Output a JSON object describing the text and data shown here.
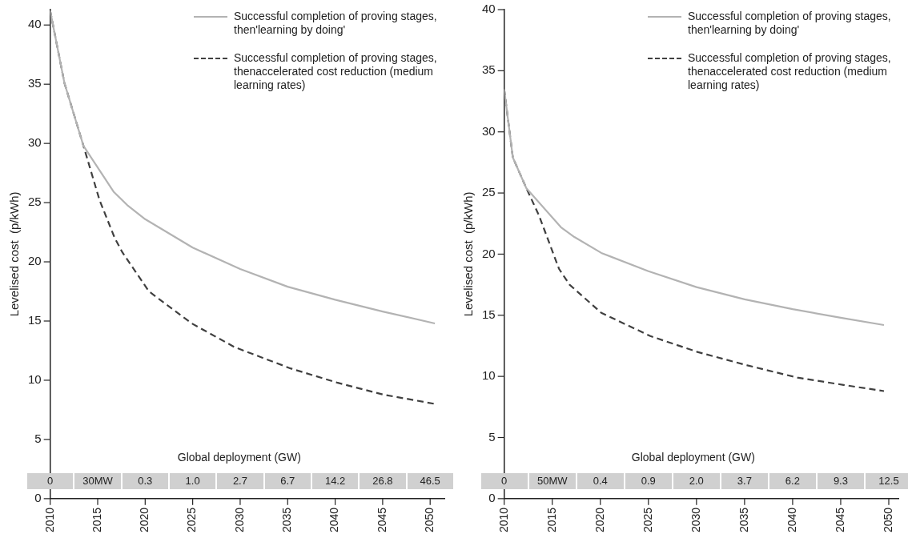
{
  "chart_data": [
    {
      "type": "line",
      "ylabel": "Levelised cost  (p/kWh)",
      "xlim": [
        2010,
        2051.5
      ],
      "xticks": [
        2010,
        2015,
        2020,
        2025,
        2030,
        2035,
        2040,
        2045,
        2050
      ],
      "ylim": [
        0,
        41.3
      ],
      "yticks": [
        0,
        5,
        10,
        15,
        20,
        25,
        30,
        35,
        40
      ],
      "grid": false,
      "legend": "top right",
      "marker": "none",
      "annotations": [
        "Global deployment (GW)",
        "0",
        "30MW",
        "0.3",
        "1.0",
        "2.7",
        "6.7",
        "14.2",
        "26.8",
        "46.5"
      ],
      "series": [
        {
          "name": "Successful completion of proving stages, then'learning by doing'",
          "color": "#b3b3b3",
          "line_style": "solid",
          "x": [
            2010,
            2011.5,
            2013.5,
            2016.7,
            2018.1,
            2020,
            2025,
            2030,
            2035,
            2040,
            2045,
            2050.5
          ],
          "values": [
            41.2,
            35.1,
            29.8,
            25.9,
            24.8,
            23.6,
            21.2,
            19.4,
            17.9,
            16.8,
            15.8,
            14.8
          ]
        },
        {
          "name": "Successful completion of proving stages, thenaccelerated cost reduction (medium learning rates)",
          "color": "#404040",
          "line_style": "dashed",
          "x": [
            2010,
            2011.5,
            2013.5,
            2015.2,
            2016.8,
            2017.6,
            2020.4,
            2024.9,
            2029.4,
            2035.3,
            2040.2,
            2045,
            2050.5
          ],
          "values": [
            41.2,
            35.1,
            29.8,
            25.2,
            22.0,
            20.8,
            17.5,
            14.8,
            12.8,
            11.0,
            9.8,
            8.8,
            8.0
          ]
        }
      ]
    },
    {
      "type": "line",
      "ylabel": "Levelised cost  (p/kWh)",
      "xlim": [
        2010,
        2051
      ],
      "xticks": [
        2010,
        2015,
        2020,
        2025,
        2030,
        2035,
        2040,
        2045,
        2050
      ],
      "ylim": [
        0,
        40
      ],
      "yticks": [
        0,
        5,
        10,
        15,
        20,
        25,
        30,
        35,
        40
      ],
      "grid": false,
      "legend": "top right",
      "marker": "none",
      "annotations": [
        "Global deployment (GW)",
        "0",
        "50MW",
        "0.4",
        "0.9",
        "2.0",
        "3.7",
        "6.2",
        "9.3",
        "12.5"
      ],
      "series": [
        {
          "name": "Successful completion of proving stages, then'learning by doing'",
          "color": "#b3b3b3",
          "line_style": "solid",
          "x": [
            2010,
            2010.9,
            2012.3,
            2015.9,
            2017.3,
            2020.1,
            2025,
            2030,
            2035,
            2040,
            2045,
            2049.5
          ],
          "values": [
            33.5,
            27.9,
            25.4,
            22.2,
            21.4,
            20.1,
            18.6,
            17.3,
            16.3,
            15.5,
            14.8,
            14.2
          ]
        },
        {
          "name": "Successful completion of proving stages, thenaccelerated cost reduction (medium learning rates)",
          "color": "#404040",
          "line_style": "dashed",
          "x": [
            2010,
            2010.9,
            2012.3,
            2013.6,
            2015.7,
            2016.8,
            2020.1,
            2025.2,
            2030.1,
            2035.3,
            2040.5,
            2045.3,
            2049.5
          ],
          "values": [
            33.5,
            27.9,
            25.4,
            23.2,
            18.8,
            17.5,
            15.2,
            13.3,
            12.0,
            10.9,
            9.9,
            9.3,
            8.8
          ]
        }
      ]
    }
  ]
}
